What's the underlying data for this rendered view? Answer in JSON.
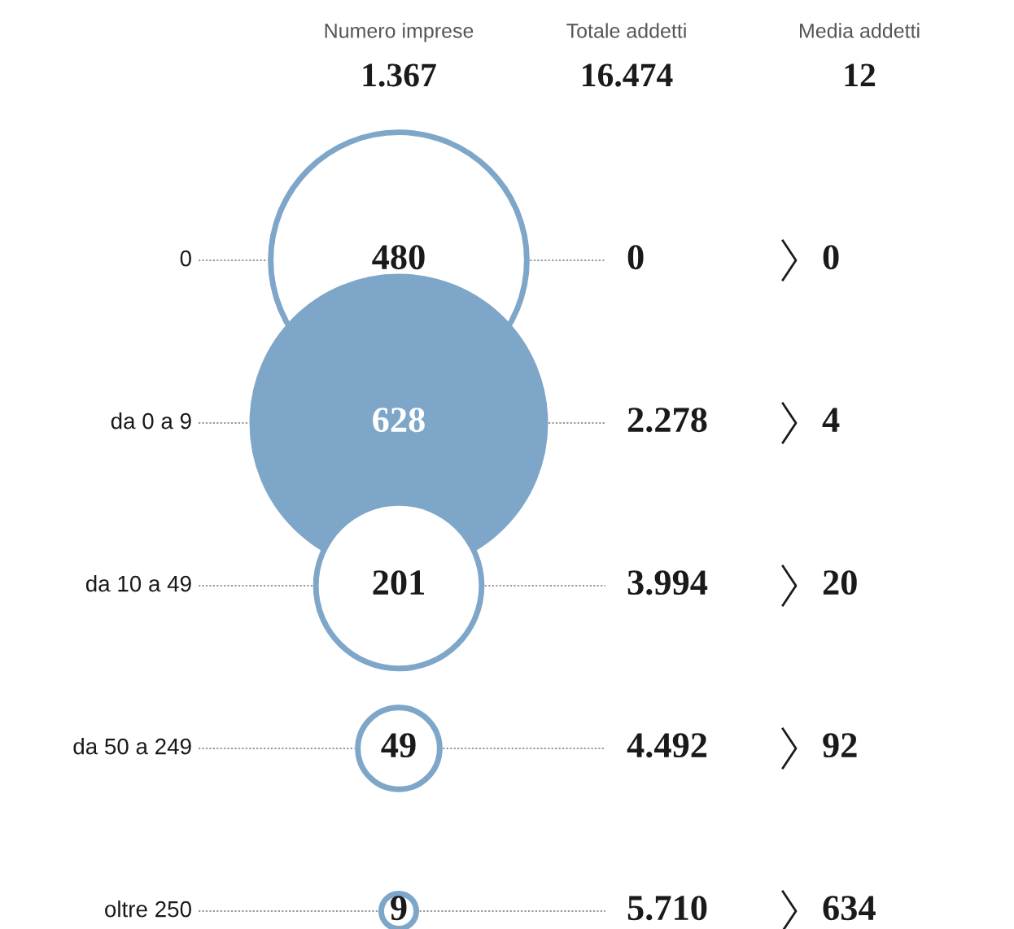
{
  "chart_data": {
    "type": "other",
    "categories": [
      "0",
      "da 0 a 9",
      "da 10 a 49",
      "da 50 a 249",
      "oltre 250"
    ],
    "series": [
      {
        "name": "Numero imprese",
        "type": "bubble",
        "color": "#7ea6c9",
        "colors": [
          "#ffffff",
          "#7ea6c9",
          "#ffffff",
          "#ffffff",
          "#ffffff"
        ],
        "values": [
          480,
          628,
          201,
          49,
          9
        ],
        "value_labels": [
          "480",
          "628",
          "201",
          "49",
          "9"
        ]
      },
      {
        "name": "Totale addetti",
        "values": [
          0,
          2278,
          3994,
          4492,
          5710
        ],
        "value_labels": [
          "0",
          "2.278",
          "3.994",
          "4.492",
          "5.710"
        ]
      },
      {
        "name": "Media addetti",
        "values": [
          0,
          4,
          20,
          92,
          634
        ],
        "value_labels": [
          "0",
          "4",
          "20",
          "92",
          "634"
        ]
      }
    ],
    "totals": [
      "1.367",
      "16.474",
      "12"
    ]
  }
}
